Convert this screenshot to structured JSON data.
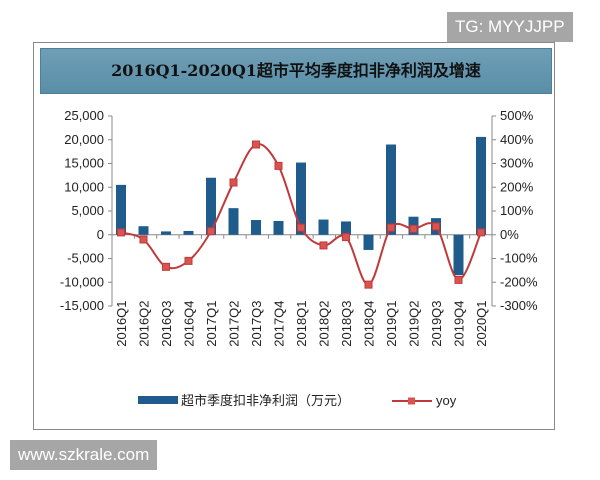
{
  "watermarks": {
    "top_right": "TG: MYYJJPP",
    "bottom_left": "www.szkrale.com"
  },
  "chart_data": {
    "type": "bar+line",
    "title": "2016Q1-2020Q1超市平均季度扣非净利润及增速",
    "categories": [
      "2016Q1",
      "2016Q2",
      "2016Q3",
      "2016Q4",
      "2017Q1",
      "2017Q2",
      "2017Q3",
      "2017Q4",
      "2018Q1",
      "2018Q2",
      "2018Q3",
      "2018Q4",
      "2019Q1",
      "2019Q2",
      "2019Q3",
      "2019Q4",
      "2020Q1"
    ],
    "series": [
      {
        "name": "超市季度扣非净利润（万元）",
        "type": "bar",
        "axis": "left",
        "color": "#1f5c8b",
        "values": [
          10500,
          1800,
          700,
          800,
          12000,
          5600,
          3100,
          2900,
          15200,
          3200,
          2800,
          -3200,
          19000,
          3800,
          3500,
          -8500,
          20600
        ]
      },
      {
        "name": "yoy",
        "type": "line",
        "axis": "right",
        "color": "#c0393b",
        "values": [
          10,
          -20,
          -135,
          -110,
          15,
          220,
          380,
          290,
          30,
          -45,
          -10,
          -210,
          30,
          25,
          35,
          -190,
          10
        ]
      }
    ],
    "left_axis": {
      "range": [
        -15000,
        25000
      ],
      "ticks": [
        "-15,000",
        "-10,000",
        "-5,000",
        "0",
        "5,000",
        "10,000",
        "15,000",
        "20,000",
        "25,000"
      ]
    },
    "right_axis": {
      "range": [
        -300,
        500
      ],
      "ticks": [
        "-300%",
        "-200%",
        "-100%",
        "0%",
        "100%",
        "200%",
        "300%",
        "400%",
        "500%"
      ]
    },
    "legend": "bottom",
    "grid": false
  }
}
